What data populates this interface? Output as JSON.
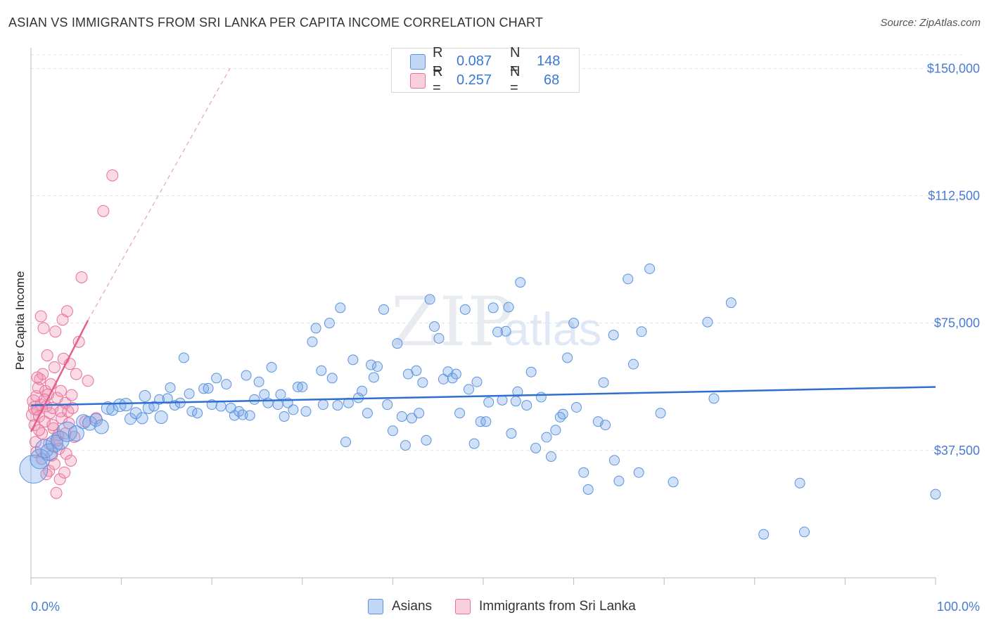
{
  "title": "ASIAN VS IMMIGRANTS FROM SRI LANKA PER CAPITA INCOME CORRELATION CHART",
  "source": "Source: ZipAtlas.com",
  "watermark": {
    "zip": "ZIP",
    "atlas": "atlas"
  },
  "legend": {
    "asians": {
      "r_label": "R =",
      "r_value": "0.087",
      "n_label": "N =",
      "n_value": "148"
    },
    "srilanka": {
      "r_label": "R =",
      "r_value": "0.257",
      "n_label": "N =",
      "n_value": "68"
    }
  },
  "bottom_legend": {
    "asians": "Asians",
    "srilanka": "Immigrants from Sri Lanka"
  },
  "colors": {
    "blue": "#5b93e0",
    "blue_fill": "rgba(120,165,232,0.35)",
    "pink": "#e9709a",
    "pink_fill": "rgba(240,150,180,0.35)",
    "trend_blue": "#2f6fd0",
    "trend_pink": "#e2608d"
  },
  "chart_data": {
    "type": "scatter",
    "title": "ASIAN VS IMMIGRANTS FROM SRI LANKA PER CAPITA INCOME CORRELATION CHART",
    "xlabel": "",
    "ylabel": "Per Capita Income",
    "xlim": [
      0,
      100
    ],
    "ylim": [
      0,
      154000
    ],
    "x_tick_labels": [
      "0.0%",
      "100.0%"
    ],
    "y_ticks": [
      37500,
      75000,
      112500,
      150000
    ],
    "y_tick_labels": [
      "$37,500",
      "$75,000",
      "$112,500",
      "$150,000"
    ],
    "series": [
      {
        "name": "Asians",
        "color": "#5b93e0",
        "trend": {
          "x": [
            0,
            100
          ],
          "y": [
            50800,
            56200
          ]
        },
        "points": [
          [
            0.3,
            32000,
            20
          ],
          [
            1.0,
            35000,
            14
          ],
          [
            1.5,
            38000,
            13
          ],
          [
            2.0,
            37000,
            12
          ],
          [
            2.6,
            39500,
            12
          ],
          [
            3.2,
            40500,
            13
          ],
          [
            4.0,
            43000,
            14
          ],
          [
            5.0,
            42500,
            11
          ],
          [
            5.8,
            46000,
            10
          ],
          [
            6.5,
            45500,
            10
          ],
          [
            7.2,
            46500,
            9
          ],
          [
            7.8,
            44500,
            10
          ],
          [
            8.5,
            50000,
            9
          ],
          [
            9.0,
            49500,
            8
          ],
          [
            9.8,
            50800,
            9
          ],
          [
            10.5,
            51000,
            9
          ],
          [
            11.0,
            46800,
            8
          ],
          [
            11.6,
            48500,
            8
          ],
          [
            12.3,
            47000,
            8
          ],
          [
            12.6,
            53500,
            8
          ],
          [
            13.0,
            50000,
            8
          ],
          [
            13.6,
            50500,
            7
          ],
          [
            14.2,
            52500,
            7
          ],
          [
            14.4,
            47300,
            9
          ],
          [
            15.1,
            52800,
            7
          ],
          [
            15.4,
            56000,
            7
          ],
          [
            15.9,
            50800,
            7
          ],
          [
            16.5,
            51500,
            7
          ],
          [
            16.9,
            64800,
            7
          ],
          [
            17.5,
            54200,
            7
          ],
          [
            17.8,
            49000,
            7
          ],
          [
            18.4,
            48500,
            7
          ],
          [
            19.1,
            55700,
            7
          ],
          [
            19.6,
            55800,
            7
          ],
          [
            20.0,
            51000,
            7
          ],
          [
            20.5,
            58800,
            7
          ],
          [
            21.0,
            50500,
            7
          ],
          [
            21.6,
            57000,
            7
          ],
          [
            22.1,
            50000,
            7
          ],
          [
            22.5,
            47800,
            7
          ],
          [
            23.0,
            49000,
            7
          ],
          [
            23.4,
            48000,
            7
          ],
          [
            23.8,
            59600,
            7
          ],
          [
            24.2,
            47800,
            7
          ],
          [
            24.7,
            52500,
            7
          ],
          [
            25.2,
            57700,
            7
          ],
          [
            25.8,
            54000,
            7
          ],
          [
            26.2,
            51500,
            7
          ],
          [
            26.6,
            62000,
            7
          ],
          [
            27.3,
            51000,
            7
          ],
          [
            27.6,
            54000,
            7
          ],
          [
            28.0,
            47500,
            7
          ],
          [
            28.4,
            51500,
            7
          ],
          [
            29.0,
            49500,
            7
          ],
          [
            29.5,
            56200,
            7
          ],
          [
            30.0,
            56200,
            7
          ],
          [
            30.4,
            49000,
            7
          ],
          [
            31.1,
            69500,
            7
          ],
          [
            31.5,
            73500,
            7
          ],
          [
            32.1,
            61000,
            7
          ],
          [
            32.3,
            51000,
            7
          ],
          [
            33.0,
            75000,
            7
          ],
          [
            33.3,
            58800,
            7
          ],
          [
            33.9,
            50800,
            7
          ],
          [
            34.2,
            79500,
            7
          ],
          [
            34.8,
            40000,
            7
          ],
          [
            35.1,
            51500,
            7
          ],
          [
            35.6,
            64200,
            7
          ],
          [
            36.2,
            53000,
            7
          ],
          [
            36.6,
            55000,
            7
          ],
          [
            37.2,
            48500,
            7
          ],
          [
            37.6,
            62700,
            7
          ],
          [
            37.9,
            59000,
            7
          ],
          [
            38.3,
            62200,
            7
          ],
          [
            39.0,
            79000,
            7
          ],
          [
            39.4,
            51000,
            7
          ],
          [
            40.0,
            43300,
            7
          ],
          [
            40.5,
            69000,
            7
          ],
          [
            41.0,
            47500,
            7
          ],
          [
            41.4,
            39000,
            7
          ],
          [
            41.7,
            60000,
            7
          ],
          [
            42.1,
            47000,
            7
          ],
          [
            42.6,
            61000,
            7
          ],
          [
            42.9,
            48500,
            7
          ],
          [
            43.3,
            57500,
            7
          ],
          [
            43.7,
            40500,
            7
          ],
          [
            44.1,
            82000,
            7
          ],
          [
            44.6,
            74000,
            7
          ],
          [
            45.1,
            70500,
            7
          ],
          [
            45.6,
            58500,
            7
          ],
          [
            46.1,
            60700,
            7
          ],
          [
            46.6,
            58800,
            7
          ],
          [
            47.0,
            60000,
            7
          ],
          [
            47.4,
            48500,
            7
          ],
          [
            48.0,
            79000,
            7
          ],
          [
            48.4,
            55500,
            7
          ],
          [
            49.0,
            39500,
            7
          ],
          [
            49.3,
            57700,
            7
          ],
          [
            49.7,
            46000,
            7
          ],
          [
            50.3,
            46000,
            7
          ],
          [
            50.6,
            51700,
            7
          ],
          [
            51.1,
            79500,
            7
          ],
          [
            51.6,
            72400,
            7
          ],
          [
            52.1,
            52300,
            7
          ],
          [
            52.5,
            72600,
            7
          ],
          [
            52.8,
            79700,
            7
          ],
          [
            53.1,
            42500,
            7
          ],
          [
            53.6,
            52000,
            7
          ],
          [
            53.8,
            54800,
            7
          ],
          [
            54.1,
            87000,
            7
          ],
          [
            54.8,
            50800,
            7
          ],
          [
            55.3,
            60600,
            7
          ],
          [
            55.8,
            38200,
            7
          ],
          [
            56.4,
            53200,
            7
          ],
          [
            57.0,
            41400,
            7
          ],
          [
            57.5,
            35700,
            7
          ],
          [
            58.0,
            43500,
            7
          ],
          [
            58.5,
            47300,
            7
          ],
          [
            58.8,
            48200,
            7
          ],
          [
            59.3,
            64800,
            7
          ],
          [
            60.0,
            75000,
            7
          ],
          [
            60.3,
            50200,
            7
          ],
          [
            61.1,
            31000,
            7
          ],
          [
            61.6,
            26000,
            7
          ],
          [
            62.7,
            46000,
            7
          ],
          [
            63.3,
            57500,
            7
          ],
          [
            63.5,
            45000,
            7
          ],
          [
            64.4,
            71500,
            7
          ],
          [
            64.5,
            34600,
            7
          ],
          [
            65.0,
            28500,
            7
          ],
          [
            66.0,
            88000,
            7
          ],
          [
            66.6,
            62900,
            7
          ],
          [
            67.2,
            31000,
            7
          ],
          [
            67.5,
            72500,
            7
          ],
          [
            68.4,
            91000,
            7
          ],
          [
            69.6,
            48500,
            7
          ],
          [
            71.0,
            28200,
            7
          ],
          [
            74.8,
            75300,
            7
          ],
          [
            75.5,
            52800,
            7
          ],
          [
            77.4,
            81000,
            7
          ],
          [
            81.0,
            12800,
            7
          ],
          [
            85.0,
            27900,
            7
          ],
          [
            85.5,
            13500,
            7
          ],
          [
            100.0,
            24600,
            7
          ]
        ]
      },
      {
        "name": "Immigrants from Sri Lanka",
        "color": "#e9709a",
        "trend": {
          "x": [
            0,
            6.3
          ],
          "y": [
            43000,
            75800
          ],
          "dashed_to": [
            22.0,
            150000
          ]
        },
        "points": [
          [
            0.2,
            48000,
            9
          ],
          [
            0.3,
            52000,
            9
          ],
          [
            0.4,
            45000,
            8
          ],
          [
            0.5,
            50000,
            10
          ],
          [
            0.6,
            53500,
            8
          ],
          [
            0.7,
            49500,
            8
          ],
          [
            0.8,
            56000,
            8
          ],
          [
            0.9,
            47500,
            8
          ],
          [
            1.0,
            58500,
            8
          ],
          [
            1.1,
            77000,
            8
          ],
          [
            1.1,
            51000,
            8
          ],
          [
            1.2,
            42500,
            8
          ],
          [
            1.3,
            60000,
            8
          ],
          [
            1.4,
            73500,
            8
          ],
          [
            1.5,
            46000,
            8
          ],
          [
            1.6,
            55000,
            8
          ],
          [
            1.7,
            50500,
            8
          ],
          [
            1.8,
            65500,
            8
          ],
          [
            1.9,
            54000,
            8
          ],
          [
            2.0,
            39500,
            8
          ],
          [
            2.0,
            31500,
            8
          ],
          [
            2.1,
            48500,
            8
          ],
          [
            2.2,
            57000,
            8
          ],
          [
            2.3,
            36000,
            8
          ],
          [
            2.4,
            50000,
            8
          ],
          [
            2.5,
            44000,
            8
          ],
          [
            2.6,
            62000,
            8
          ],
          [
            2.6,
            33500,
            8
          ],
          [
            2.7,
            72500,
            8
          ],
          [
            2.8,
            25000,
            8
          ],
          [
            2.9,
            53000,
            8
          ],
          [
            3.0,
            42000,
            8
          ],
          [
            3.1,
            38000,
            8
          ],
          [
            3.2,
            29000,
            8
          ],
          [
            3.3,
            55000,
            8
          ],
          [
            3.4,
            47000,
            8
          ],
          [
            3.5,
            76000,
            8
          ],
          [
            3.6,
            64500,
            8
          ],
          [
            3.7,
            31000,
            8
          ],
          [
            3.8,
            51500,
            8
          ],
          [
            3.9,
            36500,
            8
          ],
          [
            4.0,
            78500,
            8
          ],
          [
            4.1,
            49000,
            8
          ],
          [
            4.2,
            45500,
            8
          ],
          [
            4.3,
            63000,
            8
          ],
          [
            4.4,
            34500,
            8
          ],
          [
            4.6,
            50000,
            8
          ],
          [
            4.8,
            41500,
            8
          ],
          [
            5.0,
            60000,
            8
          ],
          [
            5.3,
            69500,
            8
          ],
          [
            5.6,
            88500,
            8
          ],
          [
            6.0,
            46000,
            8
          ],
          [
            6.3,
            58000,
            8
          ],
          [
            7.2,
            47000,
            8
          ],
          [
            8.0,
            108000,
            8
          ],
          [
            9.0,
            118500,
            8
          ],
          [
            0.5,
            40000,
            8
          ],
          [
            0.6,
            37000,
            8
          ],
          [
            0.7,
            59000,
            8
          ],
          [
            0.9,
            43500,
            8
          ],
          [
            1.2,
            35000,
            8
          ],
          [
            1.5,
            52500,
            8
          ],
          [
            1.7,
            30500,
            8
          ],
          [
            2.4,
            45000,
            8
          ],
          [
            2.9,
            40500,
            8
          ],
          [
            3.3,
            49000,
            8
          ],
          [
            3.8,
            42500,
            8
          ],
          [
            4.5,
            53800,
            8
          ]
        ]
      }
    ]
  }
}
